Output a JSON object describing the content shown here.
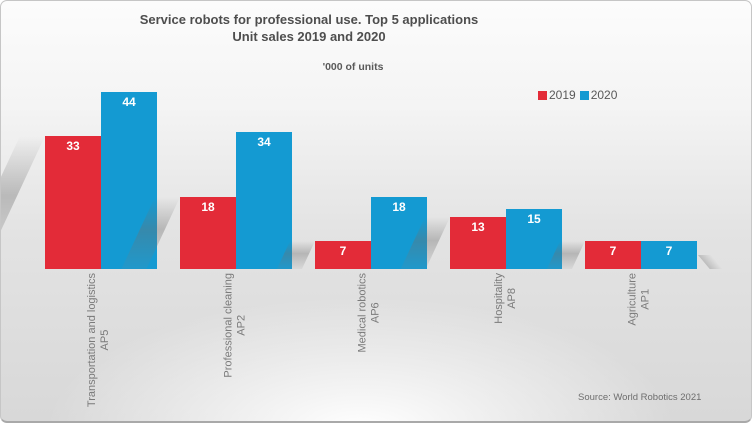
{
  "source": "Source: World Robotics 2021",
  "chart_data": {
    "type": "bar",
    "title": "Service robots for professional use. Top 5 applications",
    "subtitle": "Unit sales 2019 and 2020",
    "units_label": "'000 of units",
    "categories": [
      "Transportation and logistics",
      "Professional cleaning",
      "Medical robotics",
      "Hospitality",
      "Agriculture"
    ],
    "category_codes": [
      "AP5",
      "AP2",
      "AP6",
      "AP8",
      "AP1"
    ],
    "series": [
      {
        "name": "2019",
        "color": "#e32b38",
        "values": [
          33,
          18,
          7,
          13,
          7
        ]
      },
      {
        "name": "2020",
        "color": "#149ad2",
        "values": [
          44,
          34,
          18,
          15,
          7
        ]
      }
    ],
    "ylim": [
      0,
      44
    ],
    "grid": false,
    "axis_line": false,
    "legend_position": "top-right",
    "value_labels": "inside-top",
    "value_label_color": "#ffffff"
  }
}
